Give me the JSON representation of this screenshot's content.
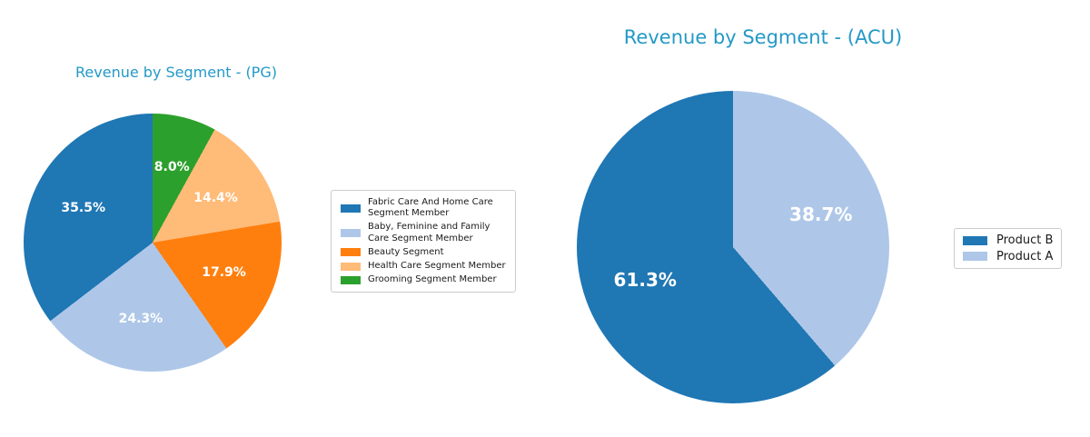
{
  "chart_data": [
    {
      "type": "pie",
      "title": "Revenue by Segment - (PG)",
      "labels": [
        "Fabric Care And Home Care Segment Member",
        "Baby, Feminine and Family Care Segment Member",
        "Beauty Segment",
        "Health Care Segment Member",
        "Grooming Segment Member"
      ],
      "values": [
        35.5,
        24.3,
        17.9,
        14.4,
        8.0
      ],
      "value_labels": [
        "35.5%",
        "24.3%",
        "17.9%",
        "14.4%",
        "8.0%"
      ],
      "colors": [
        "#1f77b4",
        "#aec7e8",
        "#ff7f0e",
        "#ffbb78",
        "#2ca02c"
      ],
      "start_angle": 90,
      "direction": "counterclockwise",
      "legend_position": "right",
      "legend": [
        {
          "color": "#1f77b4",
          "lines": [
            "Fabric Care And Home Care",
            "Segment Member"
          ]
        },
        {
          "color": "#aec7e8",
          "lines": [
            "Baby, Feminine and Family",
            "Care Segment Member"
          ]
        },
        {
          "color": "#ff7f0e",
          "lines": [
            "Beauty Segment"
          ]
        },
        {
          "color": "#ffbb78",
          "lines": [
            "Health Care Segment Member"
          ]
        },
        {
          "color": "#2ca02c",
          "lines": [
            "Grooming Segment Member"
          ]
        }
      ]
    },
    {
      "type": "pie",
      "title": "Revenue by Segment - (ACU)",
      "labels": [
        "Product B",
        "Product A"
      ],
      "values": [
        61.3,
        38.7
      ],
      "value_labels": [
        "61.3%",
        "38.7%"
      ],
      "colors": [
        "#1f77b4",
        "#aec7e8"
      ],
      "start_angle": 90,
      "direction": "counterclockwise",
      "legend_position": "right",
      "legend": [
        {
          "color": "#1f77b4",
          "lines": [
            "Product B"
          ]
        },
        {
          "color": "#aec7e8",
          "lines": [
            "Product A"
          ]
        }
      ]
    }
  ],
  "style": {
    "title_color": "#2499c7",
    "label_text_color": "#ffffff",
    "background": "#ffffff"
  }
}
